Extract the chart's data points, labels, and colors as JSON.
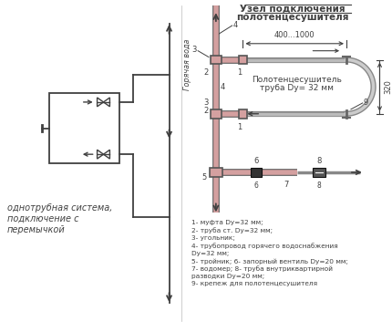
{
  "title1": "Узел подключения",
  "title2": "полотенцесушителя",
  "bg_color": "#ffffff",
  "pipe_color": "#d4a0a0",
  "line_color": "#404040",
  "legend_lines": [
    "1- муфта Dy=32 мм;",
    "2- труба ст. Dy=32 мм;",
    "3- угольник;",
    "4- трубопровод горячего водоснабжения",
    "Dy=32 мм;",
    "5- тройник; 6- запорный вентиль Dy=20 мм;",
    "7- водомер; 8- труба внутриквартирной",
    "разводки Dy=20 мм;",
    "9- крепеж для полотенцесушителя"
  ],
  "left_label": "однотрубная система,\nподключение с\nперемычкой",
  "hot_water": "Горячая вода",
  "dim_label": "400...1000",
  "dim_320": "320",
  "towel_label1": "Полотенцесушитель",
  "towel_label2": "труба Dy= 32 мм"
}
